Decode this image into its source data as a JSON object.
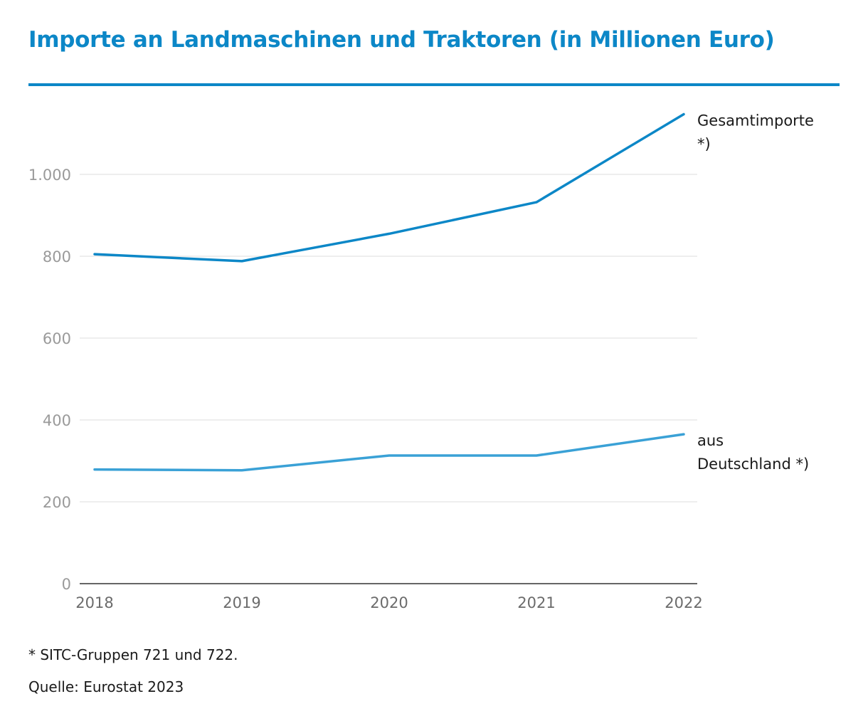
{
  "title": "Importe an Landmaschinen und Traktoren (in Millionen Euro)",
  "footnote": "* SITC-Gruppen 721 und 722.",
  "source": "Quelle: Eurostat 2023",
  "colors": {
    "accent": "#0c87c7",
    "series_total": "#0c87c7",
    "series_germany": "#3aa1d6"
  },
  "chart_data": {
    "type": "line",
    "x": [
      "2018",
      "2019",
      "2020",
      "2021",
      "2022"
    ],
    "ylim": [
      0,
      1200
    ],
    "yticks": [
      0,
      200,
      400,
      600,
      800,
      1000
    ],
    "ytick_labels": [
      "0",
      "200",
      "400",
      "600",
      "800",
      "1.000"
    ],
    "grid": true,
    "series": [
      {
        "name": "Gesamtimporte *)",
        "label_lines": [
          "Gesamtimporte",
          "*)"
        ],
        "values": [
          805,
          788,
          855,
          932,
          1147
        ]
      },
      {
        "name": "aus Deutschland *)",
        "label_lines": [
          "aus",
          "Deutschland *)"
        ],
        "values": [
          279,
          277,
          313,
          313,
          365
        ]
      }
    ]
  }
}
